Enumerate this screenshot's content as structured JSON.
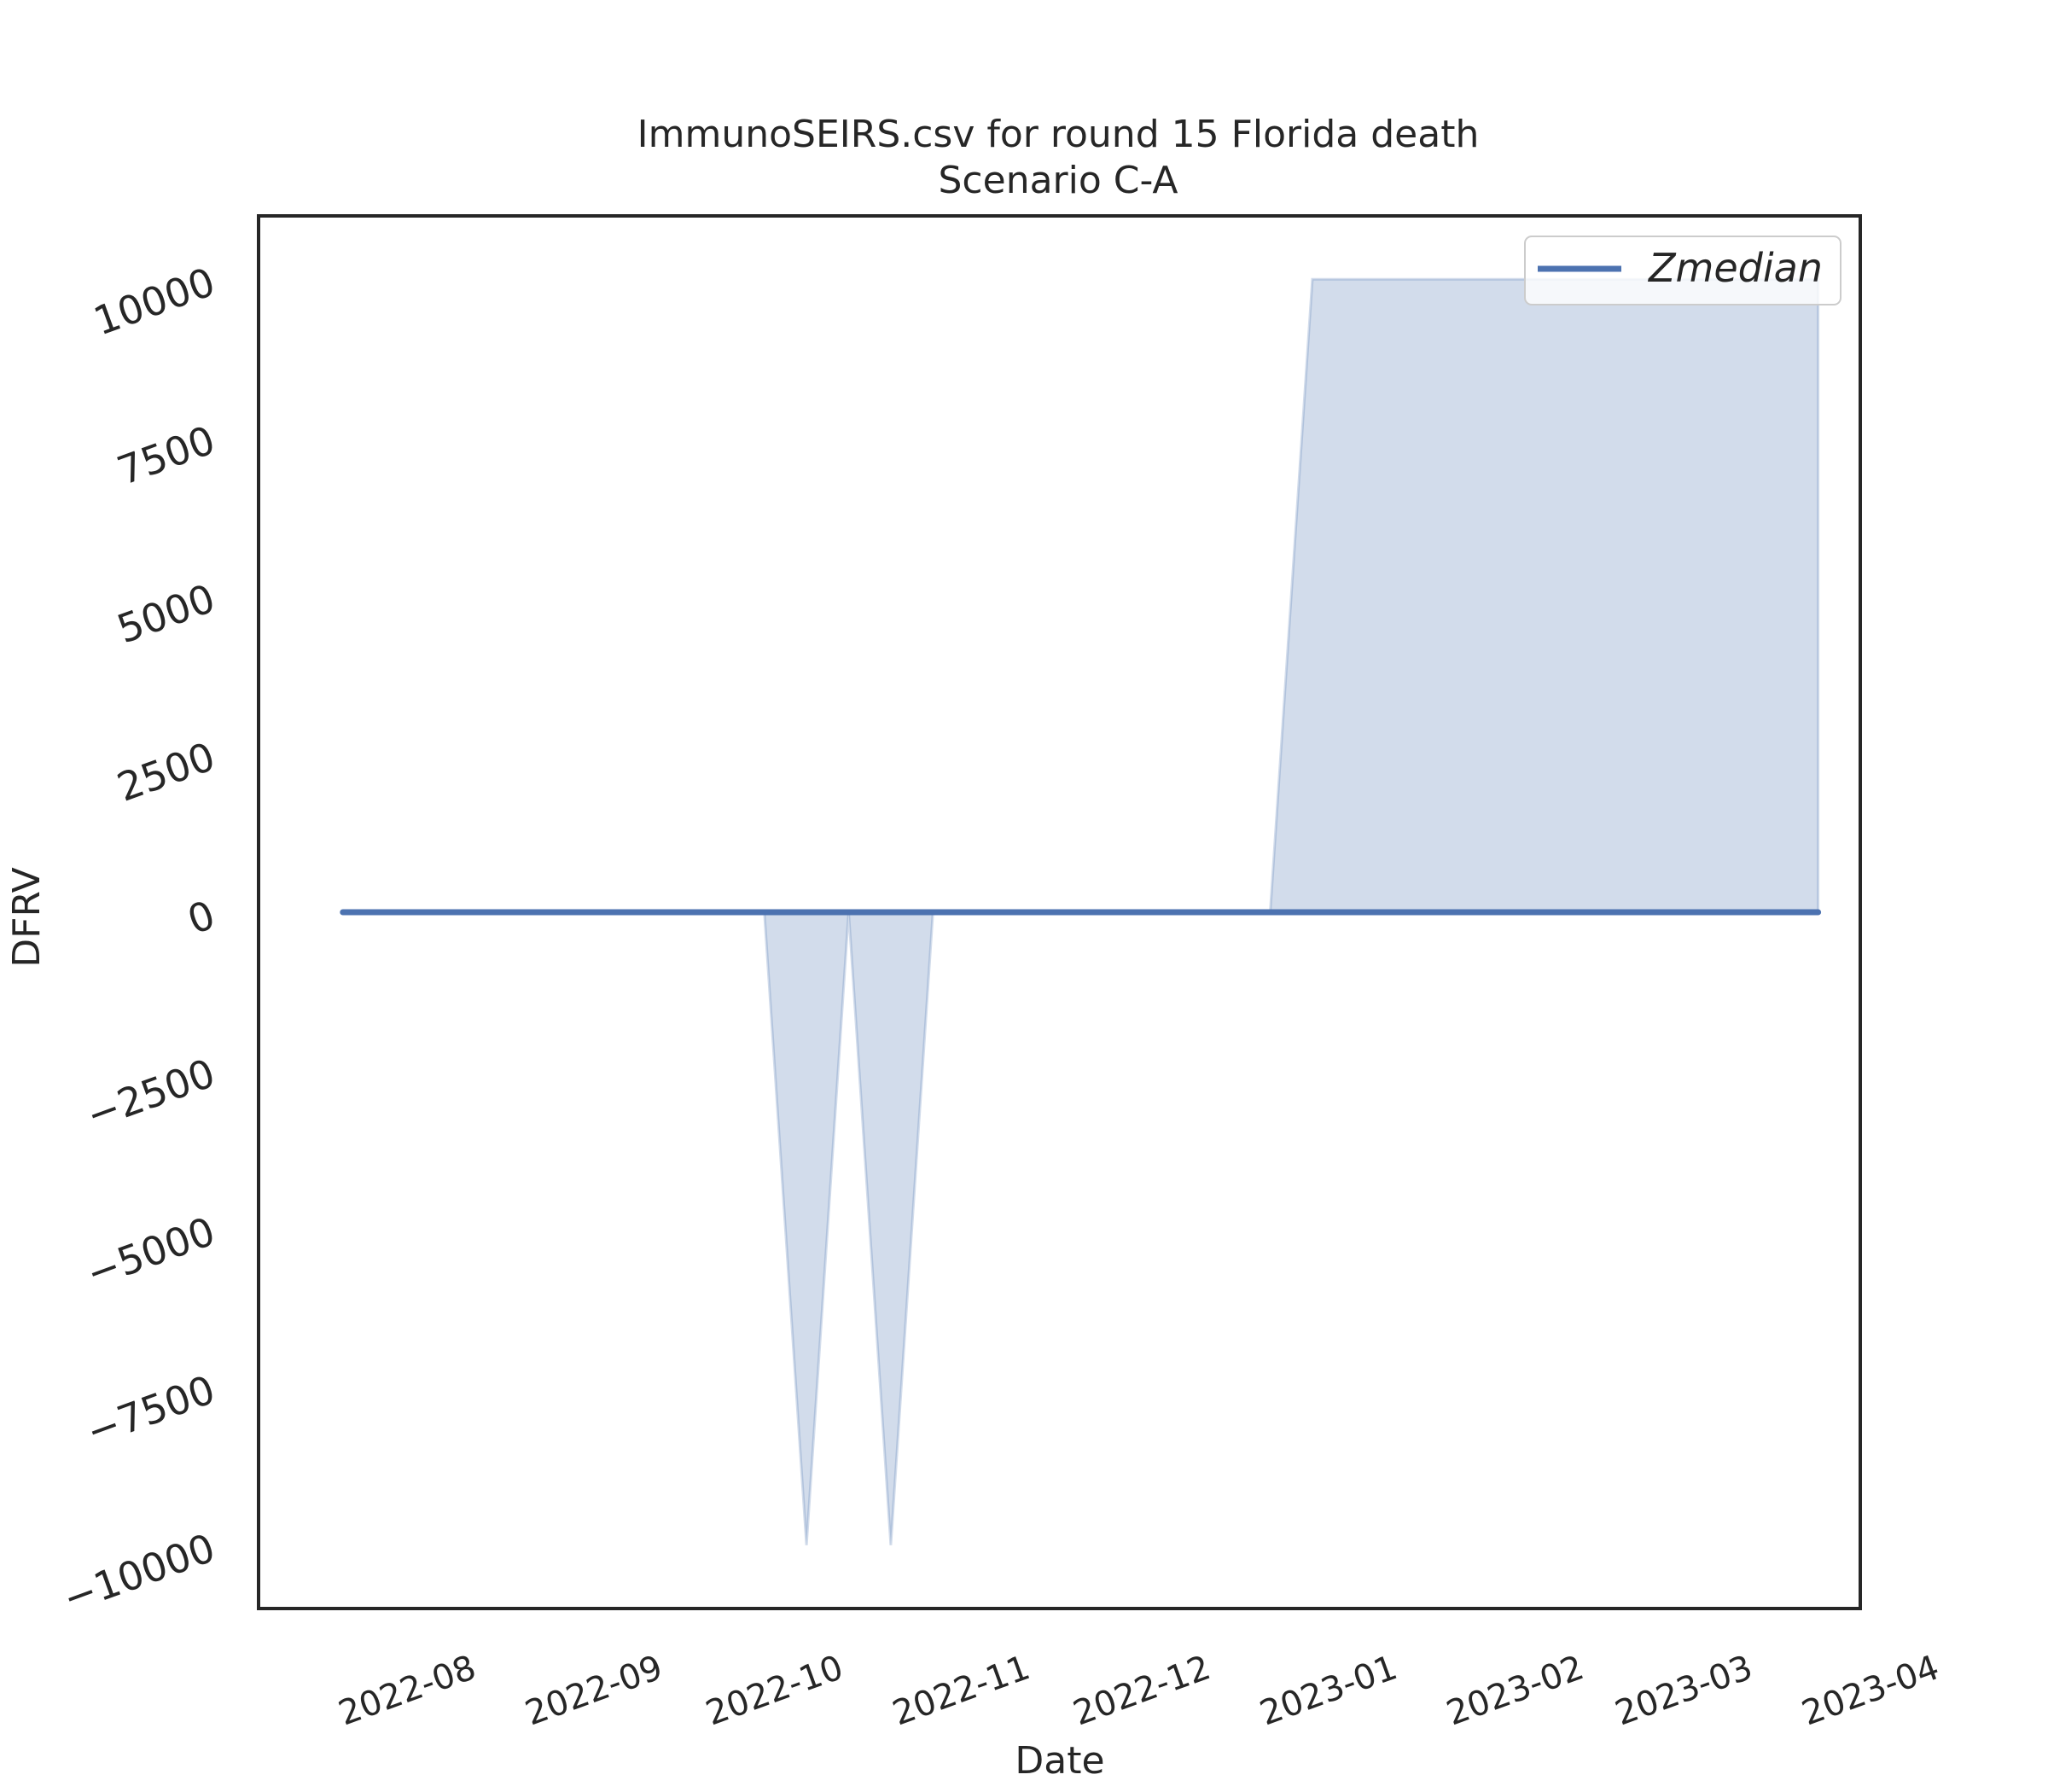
{
  "chart_data": {
    "type": "line",
    "title": "ImmunoSEIRS.csv for round 15 Florida death",
    "subtitle": "Scenario C-A",
    "xlabel": "Date",
    "ylabel": "DFRV",
    "xlim": [
      "2022-07-09",
      "2023-04-01"
    ],
    "ylim": [
      -11000,
      11000
    ],
    "x_ticks": [
      "2022-08",
      "2022-09",
      "2022-10",
      "2022-11",
      "2022-12",
      "2023-01",
      "2023-02",
      "2023-03",
      "2023-04"
    ],
    "y_ticks": [
      10000,
      7500,
      5000,
      2500,
      0,
      -2500,
      -5000,
      -7500,
      -10000
    ],
    "y_tick_labels": [
      "10000",
      "7500",
      "5000",
      "2500",
      "0",
      "−2500",
      "−5000",
      "−7500",
      "−10000"
    ],
    "grid": false,
    "legend": {
      "position": "top-right",
      "entries": [
        "Zmedian"
      ]
    },
    "colors": {
      "line": "#4c72b0",
      "band": "#4c72b0"
    },
    "series": [
      {
        "name": "Zmedian",
        "x": [
          "2022-07-23",
          "2022-07-30",
          "2022-08-06",
          "2022-08-13",
          "2022-08-20",
          "2022-08-27",
          "2022-09-03",
          "2022-09-10",
          "2022-09-17",
          "2022-09-24",
          "2022-10-01",
          "2022-10-08",
          "2022-10-15",
          "2022-10-22",
          "2022-10-29",
          "2022-11-05",
          "2022-11-12",
          "2022-11-19",
          "2022-11-26",
          "2022-12-03",
          "2022-12-10",
          "2022-12-17",
          "2022-12-24",
          "2022-12-31",
          "2023-01-07",
          "2023-01-14",
          "2023-01-21",
          "2023-01-28",
          "2023-02-04",
          "2023-02-11",
          "2023-02-18",
          "2023-02-25",
          "2023-03-04",
          "2023-03-11",
          "2023-03-18",
          "2023-03-25"
        ],
        "y": [
          0,
          0,
          0,
          0,
          0,
          0,
          0,
          0,
          0,
          0,
          0,
          0,
          0,
          0,
          0,
          0,
          0,
          0,
          0,
          0,
          0,
          0,
          0,
          0,
          0,
          0,
          0,
          0,
          0,
          0,
          0,
          0,
          0,
          0,
          0,
          0
        ],
        "lower": [
          0,
          0,
          0,
          0,
          0,
          0,
          0,
          0,
          0,
          0,
          0,
          -10000,
          0,
          -10000,
          0,
          0,
          0,
          0,
          0,
          0,
          0,
          0,
          0,
          0,
          0,
          0,
          0,
          0,
          0,
          0,
          0,
          0,
          0,
          0,
          0,
          0
        ],
        "upper": [
          0,
          0,
          0,
          0,
          0,
          0,
          0,
          0,
          0,
          0,
          0,
          0,
          0,
          0,
          0,
          0,
          0,
          0,
          0,
          0,
          0,
          0,
          0,
          10000,
          10000,
          10000,
          10000,
          10000,
          10000,
          10000,
          10000,
          10000,
          10000,
          10000,
          10000,
          10000
        ]
      }
    ]
  }
}
